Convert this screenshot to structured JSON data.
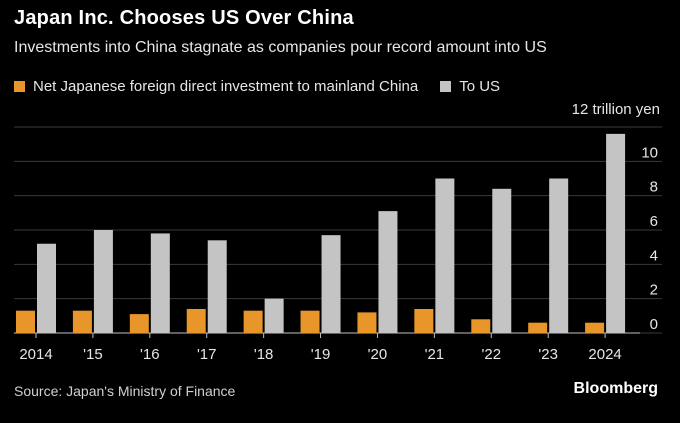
{
  "header": {
    "title": "Japan Inc. Chooses US Over China",
    "subtitle": "Investments into China stagnate as companies pour record amount into US"
  },
  "legend": {
    "items": [
      {
        "label": "Net Japanese foreign direct investment to mainland China",
        "color": "#e8952a"
      },
      {
        "label": "To US",
        "color": "#c4c4c4"
      }
    ]
  },
  "footer": {
    "source": "Source: Japan's Ministry of Finance",
    "brand": "Bloomberg"
  },
  "chart_data": {
    "type": "bar",
    "title": "Japan Inc. Chooses US Over China",
    "subtitle": "Investments into China stagnate as companies pour record amount into US",
    "unit_label": "12 trillion yen",
    "categories": [
      "2014",
      "'15",
      "'16",
      "'17",
      "'18",
      "'19",
      "'20",
      "'21",
      "'22",
      "'23",
      "2024"
    ],
    "series": [
      {
        "name": "Net Japanese foreign direct investment to mainland China",
        "color": "#e8952a",
        "values": [
          1.3,
          1.3,
          1.1,
          1.4,
          1.3,
          1.3,
          1.2,
          1.4,
          0.8,
          0.6,
          0.6
        ]
      },
      {
        "name": "To US",
        "color": "#c4c4c4",
        "values": [
          5.2,
          6.0,
          5.8,
          5.4,
          2.0,
          5.7,
          7.1,
          9.0,
          8.4,
          9.0,
          11.6
        ]
      }
    ],
    "ylim": [
      0,
      12
    ],
    "yticks": [
      0,
      2,
      4,
      6,
      8,
      10
    ],
    "grid": true,
    "legend_position": "top-left"
  }
}
